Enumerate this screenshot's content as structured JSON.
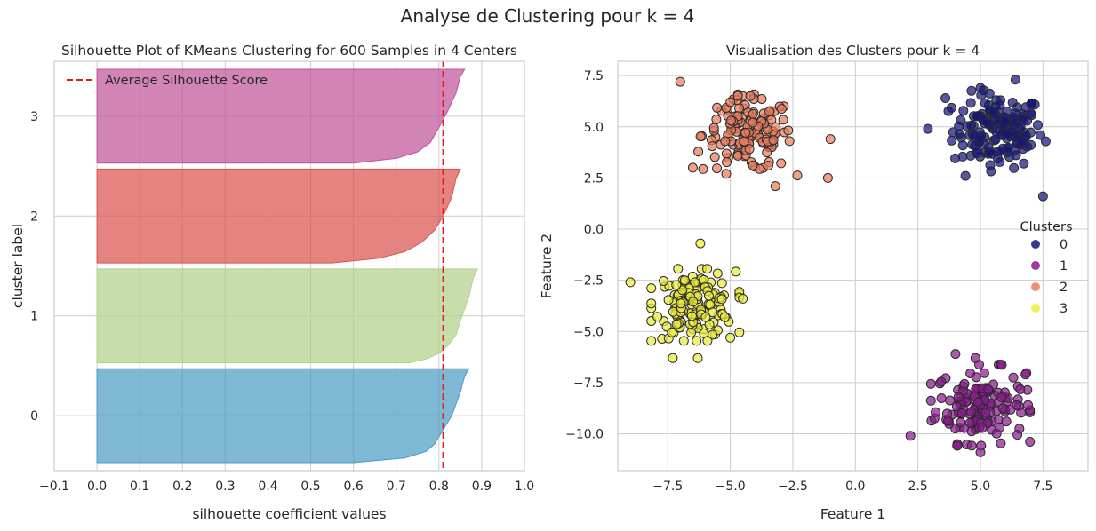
{
  "figure": {
    "suptitle": "Analyse de Clustering pour k = 4"
  },
  "chart_data": [
    {
      "type": "area",
      "title": "Silhouette Plot of KMeans Clustering for 600 Samples in 4 Centers",
      "xlabel": "silhouette coefficient values",
      "ylabel": "cluster label",
      "xlim": [
        -0.1,
        1.0
      ],
      "ylim": [
        -0.55,
        3.55
      ],
      "xticks": [
        -0.1,
        0.0,
        0.1,
        0.2,
        0.3,
        0.4,
        0.5,
        0.6,
        0.7,
        0.8,
        0.9,
        1.0
      ],
      "xtick_labels": [
        "−0.1",
        "0.0",
        "0.1",
        "0.2",
        "0.3",
        "0.4",
        "0.5",
        "0.6",
        "0.7",
        "0.8",
        "0.9",
        "1.0"
      ],
      "yticks": [
        0,
        1,
        2,
        3
      ],
      "ytick_labels": [
        "0",
        "1",
        "2",
        "3"
      ],
      "grid": true,
      "average_silhouette_score": 0.81,
      "average_line_color": "#e41a1c",
      "legend": {
        "entries": [
          "Average Silhouette Score"
        ],
        "placement": "top-left"
      },
      "series": [
        {
          "cluster": 0,
          "color": "#4c9cc4",
          "y_range": [
            -0.47,
            0.47
          ],
          "profile": [
            [
              0.0,
              0.87
            ],
            [
              0.08,
              0.86
            ],
            [
              0.25,
              0.85
            ],
            [
              0.5,
              0.83
            ],
            [
              0.65,
              0.81
            ],
            [
              0.8,
              0.79
            ],
            [
              0.88,
              0.77
            ],
            [
              0.95,
              0.72
            ],
            [
              1.0,
              0.6
            ]
          ]
        },
        {
          "cluster": 1,
          "color": "#b2d18c",
          "y_range": [
            0.53,
            1.47
          ],
          "profile": [
            [
              0.0,
              0.89
            ],
            [
              0.1,
              0.88
            ],
            [
              0.3,
              0.87
            ],
            [
              0.55,
              0.85
            ],
            [
              0.7,
              0.84
            ],
            [
              0.82,
              0.82
            ],
            [
              0.9,
              0.8
            ],
            [
              0.96,
              0.77
            ],
            [
              1.0,
              0.73
            ]
          ]
        },
        {
          "cluster": 2,
          "color": "#d9534f",
          "y_range": [
            1.53,
            2.47
          ],
          "profile": [
            [
              0.0,
              0.85
            ],
            [
              0.1,
              0.84
            ],
            [
              0.3,
              0.83
            ],
            [
              0.5,
              0.81
            ],
            [
              0.65,
              0.79
            ],
            [
              0.78,
              0.76
            ],
            [
              0.88,
              0.72
            ],
            [
              0.95,
              0.66
            ],
            [
              1.0,
              0.55
            ]
          ]
        },
        {
          "cluster": 3,
          "color": "#c0559a",
          "y_range": [
            2.53,
            3.47
          ],
          "profile": [
            [
              0.0,
              0.86
            ],
            [
              0.08,
              0.85
            ],
            [
              0.25,
              0.84
            ],
            [
              0.45,
              0.82
            ],
            [
              0.62,
              0.8
            ],
            [
              0.78,
              0.78
            ],
            [
              0.88,
              0.75
            ],
            [
              0.95,
              0.7
            ],
            [
              1.0,
              0.6
            ]
          ]
        }
      ]
    },
    {
      "type": "scatter",
      "title": "Visualisation des Clusters pour k = 4",
      "xlabel": "Feature 1",
      "ylabel": "Feature 2",
      "xlim": [
        -9.5,
        9.3
      ],
      "ylim": [
        -11.8,
        8.2
      ],
      "xticks": [
        -7.5,
        -5.0,
        -2.5,
        0.0,
        2.5,
        5.0,
        7.5
      ],
      "xtick_labels": [
        "−7.5",
        "−5.0",
        "−2.5",
        "0.0",
        "2.5",
        "5.0",
        "7.5"
      ],
      "yticks": [
        7.5,
        5.0,
        2.5,
        0.0,
        -2.5,
        -5.0,
        -7.5,
        -10.0
      ],
      "ytick_labels": [
        "7.5",
        "5.0",
        "2.5",
        "0.0",
        "−2.5",
        "−5.0",
        "−7.5",
        "−10.0"
      ],
      "grid": true,
      "legend": {
        "title": "Clusters",
        "placement": "right",
        "entries": [
          "0",
          "1",
          "2",
          "3"
        ]
      },
      "series": [
        {
          "name": "0",
          "color": "#15157f",
          "center": [
            5.7,
            4.8
          ],
          "spread": [
            0.9,
            0.9
          ],
          "count": 150,
          "notable_points": [
            [
              2.9,
              4.9
            ],
            [
              4.4,
              2.6
            ],
            [
              7.5,
              1.6
            ],
            [
              6.4,
              7.3
            ],
            [
              5.0,
              6.9
            ],
            [
              3.6,
              6.4
            ]
          ]
        },
        {
          "name": "1",
          "color": "#8a1a8d",
          "center": [
            5.0,
            -8.6
          ],
          "spread": [
            0.9,
            0.9
          ],
          "count": 150,
          "notable_points": [
            [
              6.8,
              -7.1
            ],
            [
              5.0,
              -10.9
            ],
            [
              2.2,
              -10.1
            ],
            [
              4.0,
              -6.1
            ],
            [
              6.9,
              -8.6
            ],
            [
              4.8,
              -6.3
            ]
          ]
        },
        {
          "name": "2",
          "color": "#ea7c5b",
          "center": [
            -4.3,
            4.6
          ],
          "spread": [
            0.9,
            0.9
          ],
          "count": 150,
          "notable_points": [
            [
              -7.0,
              7.2
            ],
            [
              -1.1,
              2.5
            ],
            [
              -1.0,
              4.4
            ],
            [
              -3.2,
              2.1
            ],
            [
              -6.5,
              3.0
            ],
            [
              -4.2,
              6.5
            ]
          ]
        },
        {
          "name": "3",
          "color": "#ecec3a",
          "center": [
            -6.4,
            -3.7
          ],
          "spread": [
            0.8,
            0.8
          ],
          "count": 150,
          "notable_points": [
            [
              -9.0,
              -2.6
            ],
            [
              -6.2,
              -0.7
            ],
            [
              -7.3,
              -6.3
            ],
            [
              -6.3,
              -6.3
            ],
            [
              -5.0,
              -5.3
            ],
            [
              -4.5,
              -3.4
            ]
          ]
        }
      ]
    }
  ]
}
